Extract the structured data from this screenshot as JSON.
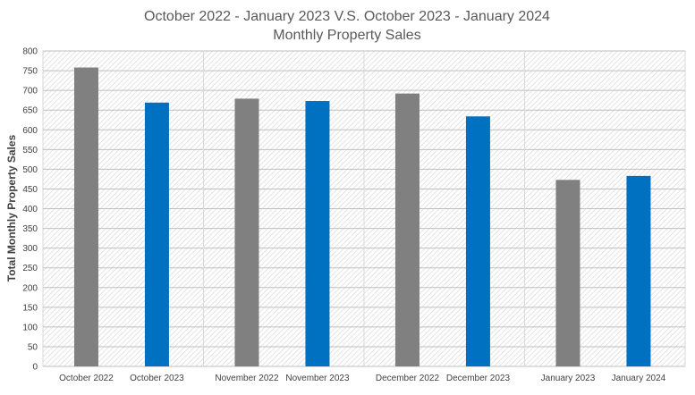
{
  "chart_data": {
    "type": "bar",
    "title": "October 2022 - January 2023 V.S. October 2023 - January 2024",
    "subtitle": "Monthly Property Sales",
    "xlabel": "",
    "ylabel": "Total Monthly Property Sales",
    "ylim": [
      0,
      800
    ],
    "y_ticks": [
      0,
      50,
      100,
      150,
      200,
      250,
      300,
      350,
      400,
      450,
      500,
      550,
      600,
      650,
      700,
      750,
      800
    ],
    "grid": true,
    "legend": "none",
    "categories": [
      "October 2022",
      "October 2023",
      "November 2022",
      "November 2023",
      "December 2022",
      "December 2023",
      "January 2023",
      "January 2024"
    ],
    "values": [
      758,
      669,
      679,
      673,
      692,
      634,
      473,
      483
    ],
    "bar_colors": [
      "#808080",
      "#0070C0",
      "#808080",
      "#0070C0",
      "#808080",
      "#0070C0",
      "#808080",
      "#0070C0"
    ]
  }
}
